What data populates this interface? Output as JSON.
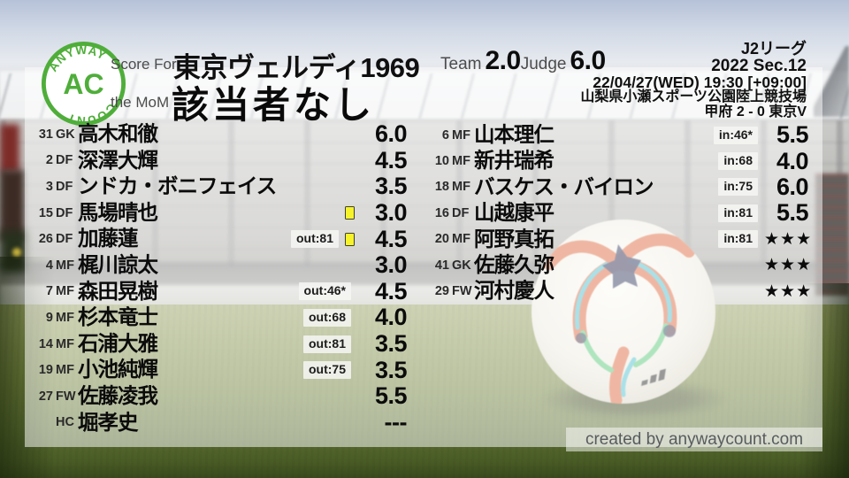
{
  "header": {
    "score_for_label": "Score For",
    "team_name": "東京ヴェルディ1969",
    "mom_label": "the MoM",
    "mom_value": "該当者なし",
    "team_label": "Team",
    "team_score": "2.0",
    "judge_label": "Judge",
    "judge_score": "6.0"
  },
  "match_info": {
    "league": "J2リーグ",
    "season": "2022 Sec.12",
    "datetime": "22/04/27(WED) 19:30 [+09:00]",
    "venue": "山梨県小瀬スポーツ公園陸上競技場",
    "result": "甲府 2 - 0 東京V"
  },
  "logo": {
    "arc_top": "ANYWAY",
    "center": "AC",
    "arc_bottom": "COUNT"
  },
  "starters": [
    {
      "number": "31",
      "pos": "GK",
      "name": "高木和徹",
      "badge": "",
      "card": false,
      "score": "6.0",
      "stars": false
    },
    {
      "number": "2",
      "pos": "DF",
      "name": "深澤大輝",
      "badge": "",
      "card": false,
      "score": "4.5",
      "stars": false
    },
    {
      "number": "3",
      "pos": "DF",
      "name": "ンドカ・ボニフェイス",
      "badge": "",
      "card": false,
      "score": "3.5",
      "stars": false
    },
    {
      "number": "15",
      "pos": "DF",
      "name": "馬場晴也",
      "badge": "",
      "card": true,
      "score": "3.0",
      "stars": false
    },
    {
      "number": "26",
      "pos": "DF",
      "name": "加藤蓮",
      "badge": "out:81",
      "card": true,
      "score": "4.5",
      "stars": false
    },
    {
      "number": "4",
      "pos": "MF",
      "name": "梶川諒太",
      "badge": "",
      "card": false,
      "score": "3.0",
      "stars": false
    },
    {
      "number": "7",
      "pos": "MF",
      "name": "森田晃樹",
      "badge": "out:46*",
      "card": false,
      "score": "4.5",
      "stars": false
    },
    {
      "number": "9",
      "pos": "MF",
      "name": "杉本竜士",
      "badge": "out:68",
      "card": false,
      "score": "4.0",
      "stars": false
    },
    {
      "number": "14",
      "pos": "MF",
      "name": "石浦大雅",
      "badge": "out:81",
      "card": false,
      "score": "3.5",
      "stars": false
    },
    {
      "number": "19",
      "pos": "MF",
      "name": "小池純輝",
      "badge": "out:75",
      "card": false,
      "score": "3.5",
      "stars": false
    },
    {
      "number": "27",
      "pos": "FW",
      "name": "佐藤凌我",
      "badge": "",
      "card": false,
      "score": "5.5",
      "stars": false
    },
    {
      "number": "",
      "pos": "HC",
      "name": "堀孝史",
      "badge": "",
      "card": false,
      "score": "---",
      "stars": false
    }
  ],
  "subs": [
    {
      "number": "6",
      "pos": "MF",
      "name": "山本理仁",
      "badge": "in:46*",
      "card": false,
      "score": "5.5",
      "stars": false
    },
    {
      "number": "10",
      "pos": "MF",
      "name": "新井瑞希",
      "badge": "in:68",
      "card": false,
      "score": "4.0",
      "stars": false
    },
    {
      "number": "18",
      "pos": "MF",
      "name": "バスケス・バイロン",
      "badge": "in:75",
      "card": false,
      "score": "6.0",
      "stars": false
    },
    {
      "number": "16",
      "pos": "DF",
      "name": "山越康平",
      "badge": "in:81",
      "card": false,
      "score": "5.5",
      "stars": false
    },
    {
      "number": "20",
      "pos": "MF",
      "name": "阿野真拓",
      "badge": "in:81",
      "card": false,
      "score": "★★★",
      "stars": true
    },
    {
      "number": "41",
      "pos": "GK",
      "name": "佐藤久弥",
      "badge": "",
      "card": false,
      "score": "★★★",
      "stars": true
    },
    {
      "number": "29",
      "pos": "FW",
      "name": "河村慶人",
      "badge": "",
      "card": false,
      "score": "★★★",
      "stars": true
    }
  ],
  "footer": {
    "credit": "created by anywaycount.com"
  },
  "colors": {
    "accent_green": "#4fae3a",
    "card_yellow": "#f6f32b",
    "text_black": "#0b0b0b",
    "label_gray": "#4c4c4c"
  }
}
